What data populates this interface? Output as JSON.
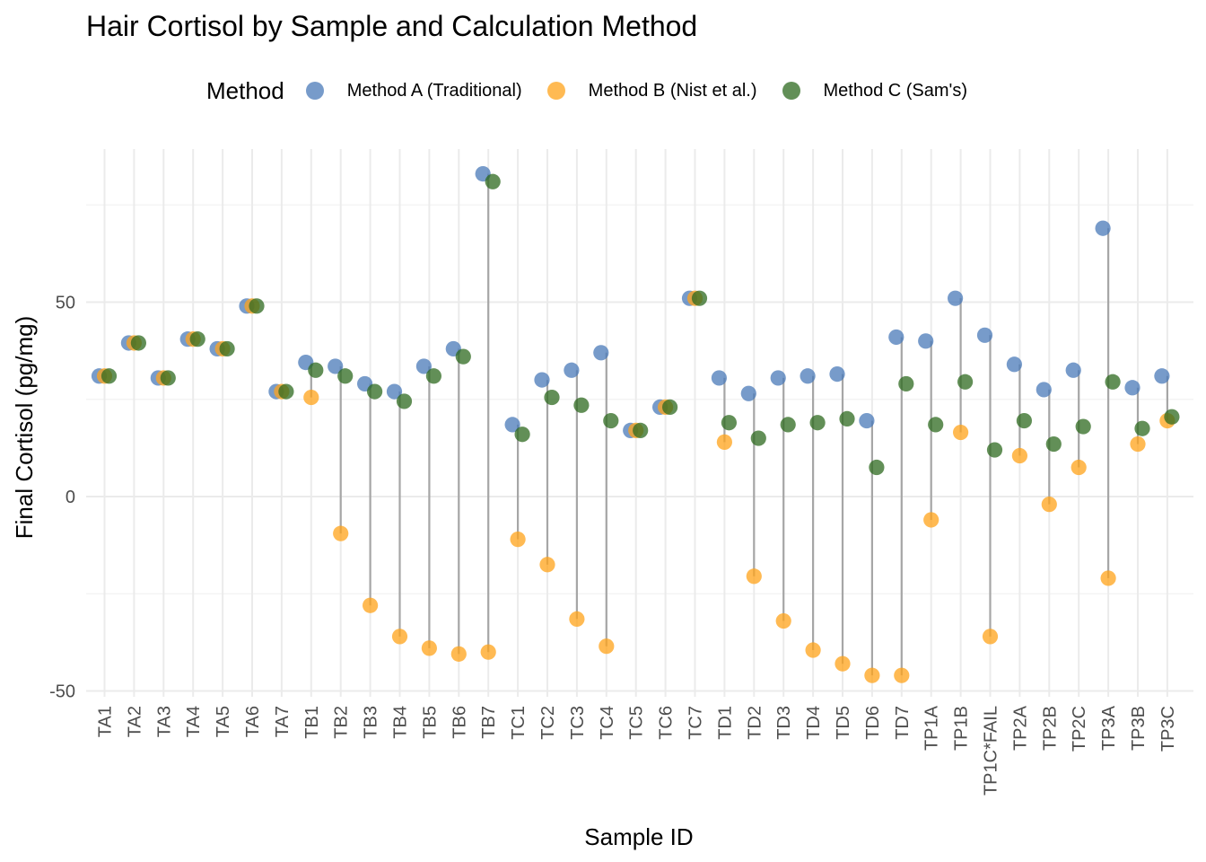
{
  "chart_data": {
    "type": "scatter",
    "title": "Hair Cortisol by Sample and Calculation Method",
    "xlabel": "Sample ID",
    "ylabel": "Final Cortisol (pg/mg)",
    "legend_title": "Method",
    "legend_position": "top",
    "grid": true,
    "ylim": [
      -50,
      85
    ],
    "yticks": [
      -50,
      0,
      50
    ],
    "categories": [
      "TA1",
      "TA2",
      "TA3",
      "TA4",
      "TA5",
      "TA6",
      "TA7",
      "TB1",
      "TB2",
      "TB3",
      "TB4",
      "TB5",
      "TB6",
      "TB7",
      "TC1",
      "TC2",
      "TC3",
      "TC4",
      "TC5",
      "TC6",
      "TC7",
      "TD1",
      "TD2",
      "TD3",
      "TD4",
      "TD5",
      "TD6",
      "TD7",
      "TP1A",
      "TP1B",
      "TP1C*FAIL",
      "TP2A",
      "TP2B",
      "TP2C",
      "TP3A",
      "TP3B",
      "TP3C"
    ],
    "series": [
      {
        "name": "Method A (Traditional)",
        "color": "#4a7ab8",
        "values": [
          31,
          39.5,
          30.5,
          40.5,
          38,
          49,
          27,
          34.5,
          33.5,
          29,
          27,
          33.5,
          38,
          83,
          18.5,
          30,
          32.5,
          37,
          17,
          23,
          51,
          30.5,
          26.5,
          30.5,
          31,
          31.5,
          19.5,
          41,
          40,
          51,
          41.5,
          34,
          27.5,
          32.5,
          69,
          28,
          31
        ]
      },
      {
        "name": "Method B (Nist et al.)",
        "color": "#ffa31a",
        "values": [
          31,
          39.5,
          30.5,
          40.5,
          38,
          49,
          27,
          25.5,
          -9.5,
          -28,
          -36,
          -39,
          -40.5,
          -40,
          -11,
          -17.5,
          -31.5,
          -38.5,
          17,
          23,
          51,
          14,
          -20.5,
          -32,
          -39.5,
          -43,
          -46,
          -46,
          -6,
          16.5,
          -36,
          10.5,
          -2,
          7.5,
          -21,
          13.5,
          19.5
        ]
      },
      {
        "name": "Method C (Sam's)",
        "color": "#2d6a1f",
        "values": [
          31,
          39.5,
          30.5,
          40.5,
          38,
          49,
          27,
          32.5,
          31,
          27,
          24.5,
          31,
          36,
          81,
          16,
          25.5,
          23.5,
          19.5,
          17,
          23,
          51,
          19,
          15,
          18.5,
          19,
          20,
          7.5,
          29,
          18.5,
          29.5,
          12,
          19.5,
          13.5,
          18,
          29.5,
          17.5,
          20.5
        ]
      }
    ]
  }
}
